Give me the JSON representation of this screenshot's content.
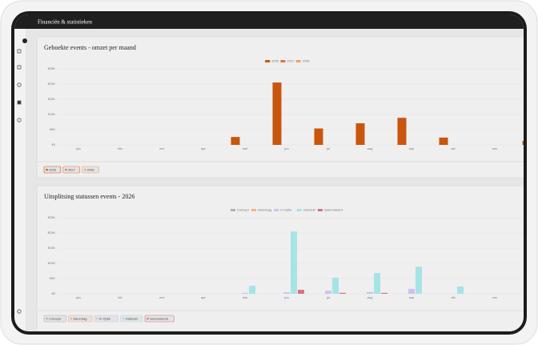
{
  "header": {
    "title": "Financiën & statistieken"
  },
  "chart_data": [
    {
      "type": "bar",
      "title": "Geboekte events - omzet per maand",
      "categories": [
        "jan",
        "feb",
        "mrt",
        "apr",
        "mei",
        "jun",
        "jul",
        "aug",
        "sep",
        "okt",
        "nov",
        "dec"
      ],
      "series": [
        {
          "name": "2026",
          "color": "#c8560c",
          "values": [
            0,
            0,
            0,
            0,
            2600,
            20500,
            5400,
            7100,
            8900,
            2400,
            0,
            1300
          ]
        },
        {
          "name": "2027",
          "color": "#e3733a",
          "values": [
            0,
            0,
            0,
            0,
            0,
            0,
            0,
            0,
            0,
            0,
            0,
            0
          ]
        },
        {
          "name": "2028",
          "color": "#f2a35a",
          "values": [
            0,
            0,
            0,
            0,
            0,
            0,
            0,
            0,
            0,
            0,
            0,
            0
          ]
        }
      ],
      "ylim": [
        0,
        25000
      ],
      "yticks": [
        {
          "value": 0,
          "label": "€0"
        },
        {
          "value": 5000,
          "label": "€5K"
        },
        {
          "value": 10000,
          "label": "€10K"
        },
        {
          "value": 15000,
          "label": "€15K"
        },
        {
          "value": 20000,
          "label": "€20K"
        },
        {
          "value": 25000,
          "label": "€25K"
        }
      ],
      "grid": true,
      "legend": "top"
    },
    {
      "type": "bar",
      "title": "Uitsplitsing statussen events - 2026",
      "categories": [
        "jan",
        "feb",
        "mrt",
        "apr",
        "mei",
        "jun",
        "jul",
        "aug",
        "sep",
        "okt",
        "nov",
        "dec"
      ],
      "series": [
        {
          "name": "Concept",
          "color": "#b0b0b0",
          "values": [
            0,
            0,
            0,
            0,
            0,
            0,
            0,
            0,
            0,
            0,
            0,
            0
          ]
        },
        {
          "name": "Aanvraag",
          "color": "#f5b08a",
          "values": [
            0,
            0,
            0,
            0,
            0,
            0,
            0,
            0,
            0,
            0,
            0,
            0
          ]
        },
        {
          "name": "In Optie",
          "color": "#c9c3f2",
          "values": [
            0,
            0,
            0,
            0,
            300,
            500,
            1000,
            600,
            1600,
            0,
            0,
            0
          ]
        },
        {
          "name": "Geboekt",
          "color": "#a6e3e6",
          "values": [
            0,
            0,
            0,
            0,
            2600,
            20500,
            5300,
            6800,
            8900,
            2400,
            0,
            0
          ]
        },
        {
          "name": "Geannuleerd",
          "color": "#d9707a",
          "values": [
            0,
            0,
            0,
            0,
            0,
            1300,
            300,
            300,
            0,
            0,
            0,
            0
          ]
        }
      ],
      "ylim": [
        0,
        25000
      ],
      "yticks": [
        {
          "value": 0,
          "label": "€0"
        },
        {
          "value": 5000,
          "label": "€5K"
        },
        {
          "value": 10000,
          "label": "€10K"
        },
        {
          "value": 15000,
          "label": "€15K"
        },
        {
          "value": 20000,
          "label": "€20K"
        },
        {
          "value": 25000,
          "label": "€25K"
        }
      ],
      "grid": true,
      "legend": "top"
    }
  ]
}
